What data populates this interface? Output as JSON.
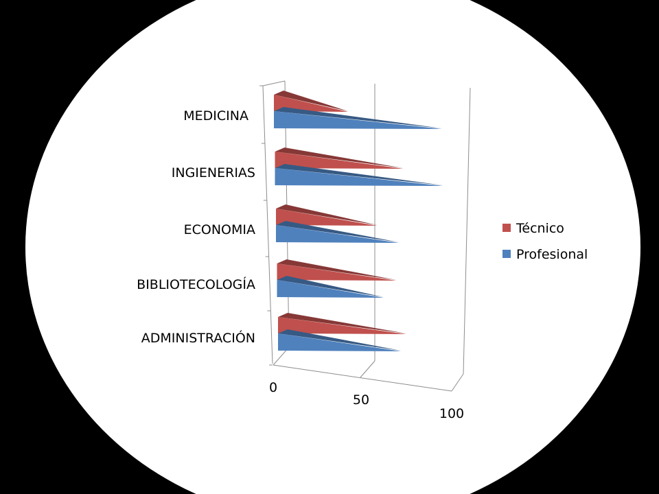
{
  "chart_data": {
    "type": "bar",
    "orientation": "horizontal",
    "style": "3d-pyramid",
    "title": "",
    "categories": [
      "MEDICINA",
      "INGIENERIAS",
      "ECONOMIA",
      "BIBLIOTECOLOGÍA",
      "ADMINISTRACIÓN"
    ],
    "series": [
      {
        "name": "Técnico",
        "color": "#C0504D",
        "values": [
          38,
          68,
          53,
          63,
          68
        ]
      },
      {
        "name": "Profesional",
        "color": "#4F81BD",
        "values": [
          90,
          90,
          65,
          56,
          65
        ]
      }
    ],
    "xlim": [
      0,
      100
    ],
    "x_ticks": [
      "0",
      "50",
      "100"
    ],
    "grid": true,
    "legend": "right"
  }
}
